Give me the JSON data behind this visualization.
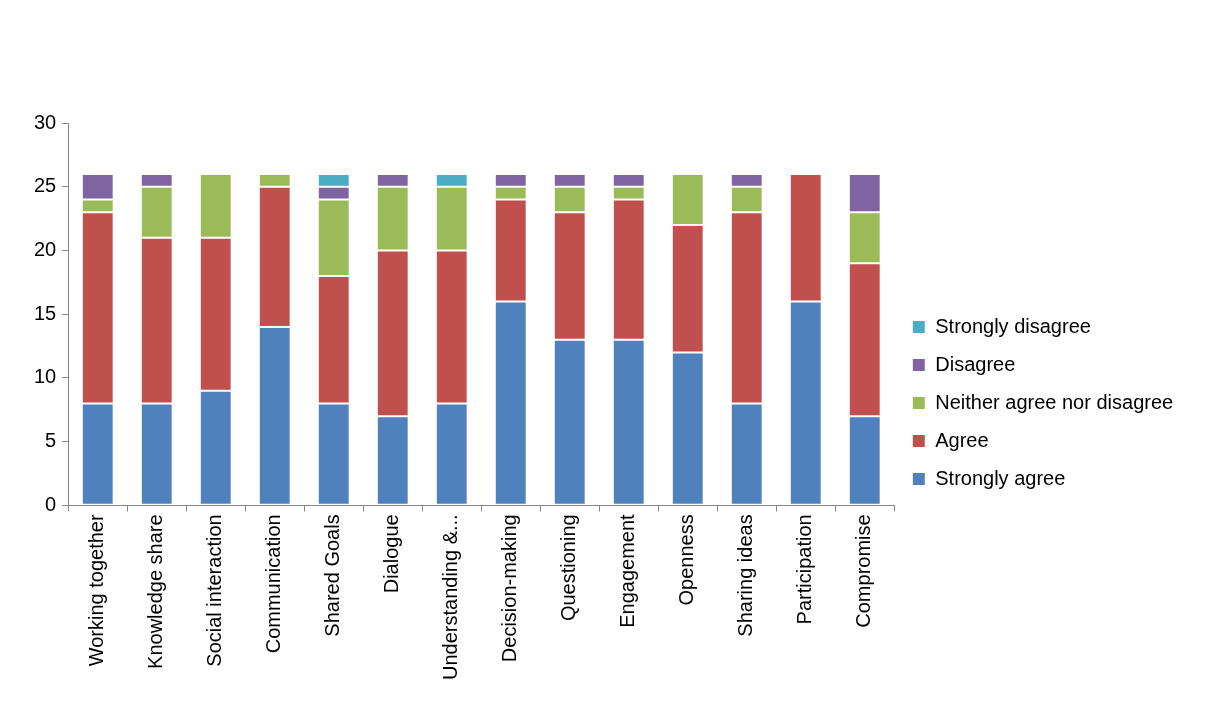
{
  "chart_data": {
    "type": "bar",
    "stacked": true,
    "categories": [
      "Working together",
      "Knowledge share",
      "Social interaction",
      "Communication",
      "Shared Goals",
      "Dialogue",
      "Understanding &...",
      "Decision-making",
      "Questioning",
      "Engagement",
      "Openness",
      "Sharing ideas",
      "Participation",
      "Compromise"
    ],
    "series": [
      {
        "name": "Strongly agree",
        "color": "#4f81bd",
        "values": [
          8,
          8,
          9,
          14,
          8,
          7,
          8,
          16,
          13,
          13,
          12,
          8,
          16,
          7
        ]
      },
      {
        "name": "Agree",
        "color": "#c0504d",
        "values": [
          15,
          13,
          12,
          11,
          10,
          13,
          12,
          8,
          10,
          11,
          10,
          15,
          10,
          12
        ]
      },
      {
        "name": "Neither agree nor disagree",
        "color": "#9bbb59",
        "values": [
          1,
          4,
          5,
          1,
          6,
          5,
          5,
          1,
          2,
          1,
          4,
          2,
          0,
          4
        ]
      },
      {
        "name": "Disagree",
        "color": "#8064a2",
        "values": [
          2,
          1,
          0,
          0,
          1,
          1,
          0,
          1,
          1,
          1,
          0,
          1,
          0,
          3
        ]
      },
      {
        "name": "Strongly disagree",
        "color": "#4bacc6",
        "values": [
          0,
          0,
          0,
          0,
          1,
          0,
          1,
          0,
          0,
          0,
          0,
          0,
          0,
          0
        ]
      }
    ],
    "ylim": [
      0,
      30
    ],
    "yticks": [
      0,
      5,
      10,
      15,
      20,
      25,
      30
    ],
    "grid": false,
    "legend": "right"
  }
}
